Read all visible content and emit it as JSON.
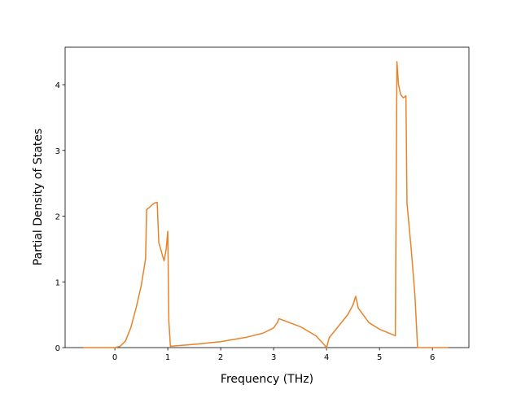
{
  "chart_data": {
    "type": "line",
    "xlabel": "Frequency (THz)",
    "ylabel": "Partial Density of States",
    "x": [
      -0.6,
      0,
      0.1,
      0.2,
      0.3,
      0.4,
      0.5,
      0.58,
      0.6,
      0.65,
      0.7,
      0.75,
      0.8,
      0.83,
      0.9,
      0.93,
      0.97,
      1.0,
      1.02,
      1.05,
      1.5,
      2.0,
      2.5,
      2.8,
      3.0,
      3.07,
      3.1,
      3.5,
      3.8,
      3.95,
      4.0,
      4.05,
      4.2,
      4.4,
      4.5,
      4.55,
      4.6,
      4.8,
      5.0,
      5.3,
      5.33,
      5.36,
      5.4,
      5.45,
      5.5,
      5.52,
      5.6,
      5.67,
      5.72,
      6.3
    ],
    "series": [
      {
        "color": "#e8832a",
        "values": [
          0,
          0,
          0.02,
          0.1,
          0.3,
          0.6,
          0.95,
          1.35,
          2.1,
          2.13,
          2.17,
          2.2,
          2.21,
          1.6,
          1.4,
          1.32,
          1.5,
          1.77,
          0.4,
          0.02,
          0.05,
          0.09,
          0.16,
          0.22,
          0.3,
          0.38,
          0.44,
          0.32,
          0.18,
          0.05,
          0,
          0.15,
          0.3,
          0.5,
          0.65,
          0.78,
          0.6,
          0.38,
          0.28,
          0.18,
          4.35,
          4.0,
          3.85,
          3.8,
          3.83,
          2.2,
          1.5,
          0.8,
          0,
          0
        ]
      }
    ],
    "xlim": [
      -0.94,
      6.69
    ],
    "ylim": [
      0,
      4.57
    ],
    "xticks": [
      0,
      1,
      2,
      3,
      4,
      5,
      6
    ],
    "yticks": [
      0,
      1,
      2,
      3,
      4
    ]
  }
}
